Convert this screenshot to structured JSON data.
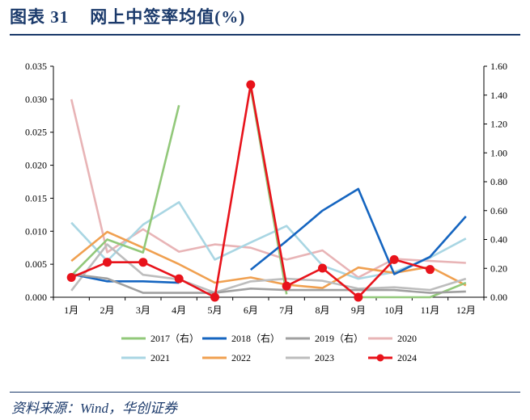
{
  "header": {
    "figure_label": "图表 31",
    "title": "网上中签率均值(%)"
  },
  "source": "资料来源：Wind，华创证券",
  "chart_data": {
    "type": "line",
    "title": "网上中签率均值(%)",
    "categories": [
      "1月",
      "2月",
      "3月",
      "4月",
      "5月",
      "6月",
      "7月",
      "8月",
      "9月",
      "10月",
      "11月",
      "12月"
    ],
    "y_left": {
      "min": 0,
      "max": 0.035,
      "ticks": [
        "0.000",
        "0.005",
        "0.010",
        "0.015",
        "0.020",
        "0.025",
        "0.030",
        "0.035"
      ]
    },
    "y_right": {
      "min": 0,
      "max": 1.6,
      "ticks": [
        "0.00",
        "0.20",
        "0.40",
        "0.60",
        "0.80",
        "1.00",
        "1.20",
        "1.40",
        "1.60"
      ]
    },
    "series": [
      {
        "name": "2017（右）",
        "color": "#92c87a",
        "axis": "right",
        "marker": false,
        "values": [
          0.15,
          0.4,
          0.31,
          1.33,
          null,
          1.45,
          0.02,
          null,
          0.0,
          0.0,
          0.0,
          0.1
        ]
      },
      {
        "name": "2018（右）",
        "color": "#1565c0",
        "axis": "right",
        "marker": false,
        "values": [
          0.16,
          0.11,
          0.11,
          0.1,
          null,
          0.19,
          0.39,
          0.6,
          0.75,
          0.16,
          0.28,
          0.56
        ]
      },
      {
        "name": "2019（右）",
        "color": "#a0a0a0",
        "axis": "right",
        "marker": false,
        "values": [
          0.16,
          0.13,
          0.03,
          0.03,
          0.03,
          0.06,
          0.05,
          0.05,
          0.05,
          0.05,
          0.03,
          0.04
        ]
      },
      {
        "name": "2020",
        "color": "#e8b4b6",
        "axis": "left",
        "marker": false,
        "values": [
          0.03,
          0.0068,
          0.0103,
          0.0069,
          0.008,
          0.0075,
          0.0057,
          0.0071,
          0.003,
          0.0058,
          0.0055,
          0.0052
        ]
      },
      {
        "name": "2021",
        "color": "#a9d6e3",
        "axis": "left",
        "marker": false,
        "values": [
          0.0113,
          0.0055,
          0.011,
          0.0144,
          0.0057,
          0.0083,
          0.0108,
          0.0048,
          0.0028,
          0.0038,
          0.006,
          0.0089
        ]
      },
      {
        "name": "2022",
        "color": "#f0a050",
        "axis": "left",
        "marker": false,
        "values": [
          0.0055,
          0.0099,
          0.0075,
          0.005,
          0.0022,
          0.003,
          0.0019,
          0.0014,
          0.0045,
          0.0037,
          0.0046,
          0.0018
        ]
      },
      {
        "name": "2023",
        "color": "#bdbdbd",
        "axis": "left",
        "marker": false,
        "values": [
          0.001,
          0.008,
          0.0034,
          0.0027,
          0.0007,
          0.0024,
          0.0028,
          0.0025,
          0.0013,
          0.0015,
          0.0011,
          0.0028
        ]
      },
      {
        "name": "2024",
        "color": "#e8131b",
        "axis": "left",
        "marker": true,
        "values": [
          0.003,
          0.0053,
          0.0053,
          0.0028,
          0.0,
          0.0322,
          0.0017,
          0.0044,
          0.0,
          0.0057,
          0.0042,
          null
        ]
      }
    ],
    "legend": {
      "position": "bottom",
      "rows": [
        [
          "2017（右）",
          "2018（右）",
          "2019（右）",
          "2020"
        ],
        [
          "2021",
          "2022",
          "2023",
          "2024"
        ]
      ]
    }
  }
}
